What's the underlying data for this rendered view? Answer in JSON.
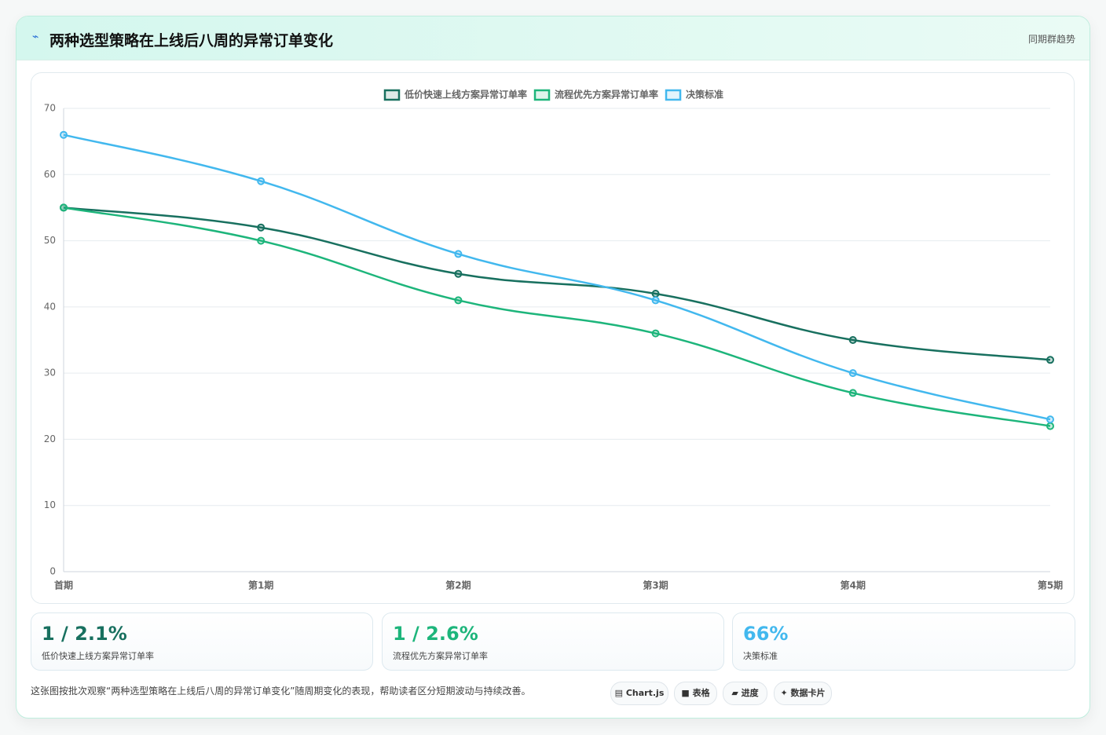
{
  "header": {
    "title": "两种选型策略在上线后八周的异常订单变化",
    "tag": "同期群趋势"
  },
  "chart_data": {
    "type": "line",
    "categories": [
      "首期",
      "第1期",
      "第2期",
      "第3期",
      "第4期",
      "第5期"
    ],
    "series": [
      {
        "name": "低价快速上线方案异常订单率",
        "color": "#18705f",
        "values": [
          55,
          52,
          45,
          42,
          35,
          32
        ]
      },
      {
        "name": "流程优先方案异常订单率",
        "color": "#1db57b",
        "values": [
          55,
          50,
          41,
          36,
          27,
          22
        ]
      },
      {
        "name": "决策标准",
        "color": "#42b8ee",
        "values": [
          66,
          59,
          48,
          41,
          30,
          23
        ]
      }
    ],
    "ylim": [
      0,
      70
    ],
    "yticks": [
      0,
      10,
      20,
      30,
      40,
      50,
      60,
      70
    ],
    "grid": true,
    "legend": "top"
  },
  "stats": [
    {
      "value": "1 / 2.1%",
      "label": "低价快速上线方案异常订单率",
      "color": "#18705f"
    },
    {
      "value": "1 / 2.6%",
      "label": "流程优先方案异常订单率",
      "color": "#1db57b"
    },
    {
      "value": "66%",
      "label": "决策标准",
      "color": "#42b8ee"
    }
  ],
  "footer": {
    "text": "这张图按批次观察“两种选型策略在上线后八周的异常订单变化”随周期变化的表现，帮助读者区分短期波动与持续改善。",
    "buttons": [
      "Chart.js",
      "表格",
      "进度",
      "数据卡片"
    ]
  }
}
